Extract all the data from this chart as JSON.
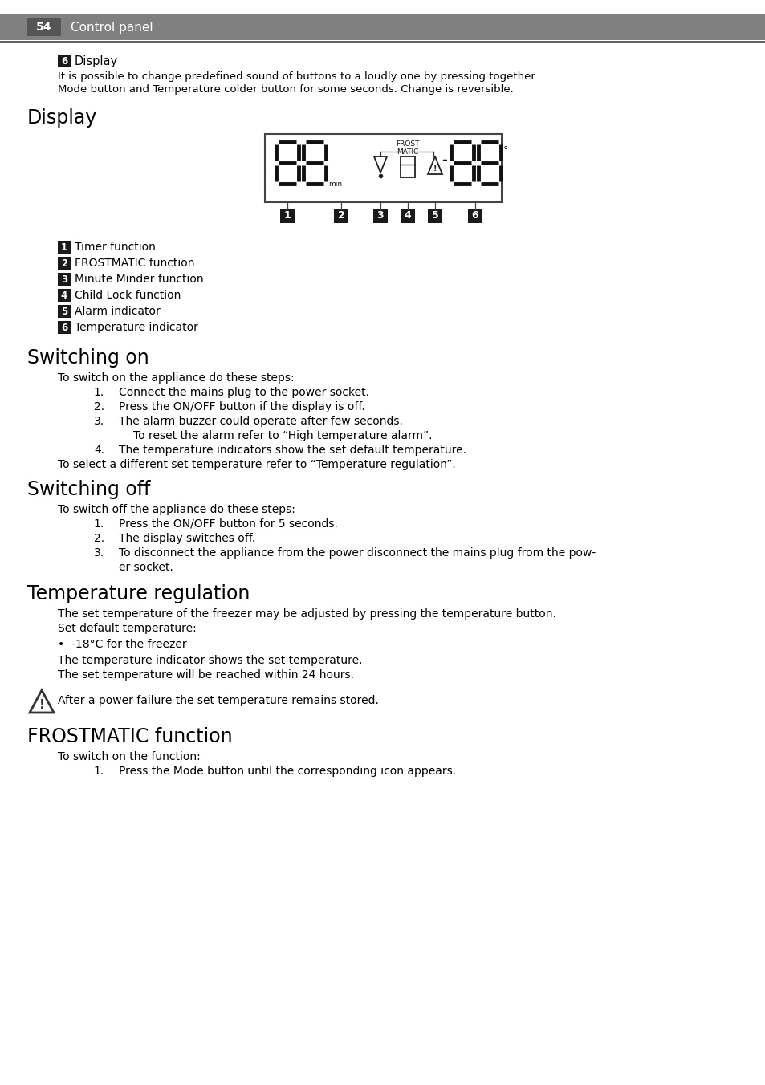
{
  "page_number": "54",
  "page_title": "Control panel",
  "bg_color": "#ffffff",
  "text_color": "#000000",
  "badge_bg": "#1a1a1a",
  "badge_text": "#ffffff",
  "header_bg": "#808080",
  "header_badge_bg": "#555555",
  "line_color": "#333333",
  "content": {
    "intro_badge": "6",
    "intro_label": "Display",
    "intro_text1": "It is possible to change predefined sound of buttons to a loudly one by pressing together",
    "intro_text2": "Mode button and Temperature colder button for some seconds. Change is reversible.",
    "section1_title": "Display",
    "badge_items": [
      {
        "num": "1",
        "text": "Timer function"
      },
      {
        "num": "2",
        "text": "FROSTMATIC function"
      },
      {
        "num": "3",
        "text": "Minute Minder function"
      },
      {
        "num": "4",
        "text": "Child Lock function"
      },
      {
        "num": "5",
        "text": "Alarm indicator"
      },
      {
        "num": "6",
        "text": "Temperature indicator"
      }
    ],
    "section2_title": "Switching on",
    "section2_intro": "To switch on the appliance do these steps:",
    "section2_items": [
      "Connect the mains plug to the power socket.",
      "Press the ON/OFF button if the display is off.",
      "The alarm buzzer could operate after few seconds.",
      "The temperature indicators show the set default temperature."
    ],
    "section2_subtext": "To reset the alarm refer to “High temperature alarm”.",
    "section2_outro": "To select a different set temperature refer to “Temperature regulation”.",
    "section3_title": "Switching off",
    "section3_intro": "To switch off the appliance do these steps:",
    "section3_items": [
      "Press the ON/OFF button for 5 seconds.",
      "The display switches off.",
      "To disconnect the appliance from the power disconnect the mains plug from the pow-",
      "er socket."
    ],
    "section4_title": "Temperature regulation",
    "section4_text1": "The set temperature of the freezer may be adjusted by pressing the temperature button.",
    "section4_text2": "Set default temperature:",
    "section4_bullet": "•  -18°C for the freezer",
    "section4_text3": "The temperature indicator shows the set temperature.",
    "section4_text4": "The set temperature will be reached within 24 hours.",
    "section4_warning": "After a power failure the set temperature remains stored.",
    "section5_title": "FROSTMATIC function",
    "section5_intro": "To switch on the function:",
    "section5_item": "Press the Mode button until the corresponding icon appears."
  }
}
